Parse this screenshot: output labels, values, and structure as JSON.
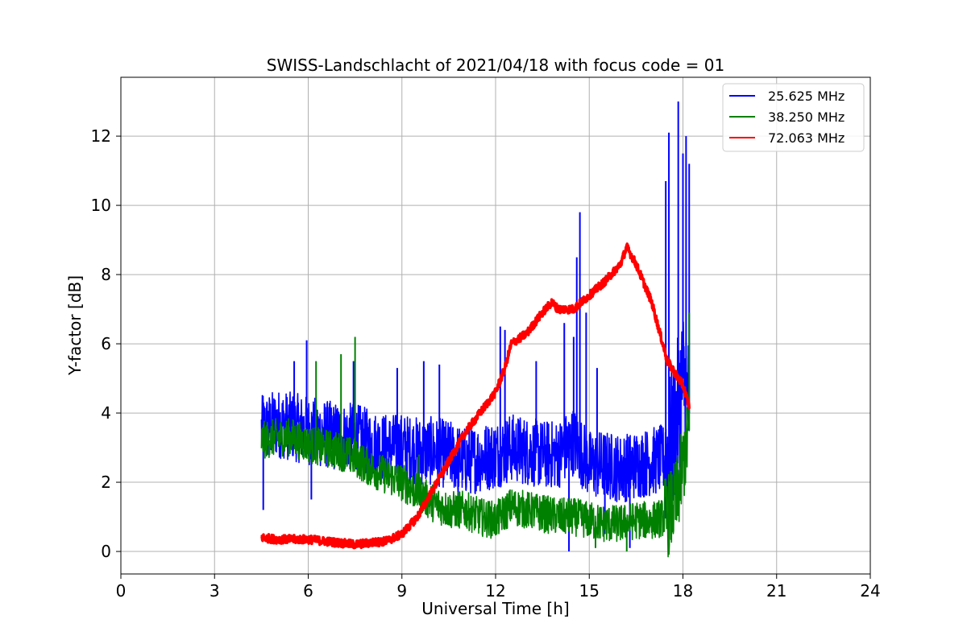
{
  "chart_data": {
    "type": "line",
    "title": "SWISS-Landschlacht of 2021/04/18 with focus code = 01",
    "xlabel": "Universal Time [h]",
    "ylabel": "Y-factor [dB]",
    "xlim": [
      0,
      24
    ],
    "ylim": [
      -0.65,
      13.7
    ],
    "xticks": [
      0,
      3,
      6,
      9,
      12,
      15,
      18,
      21,
      24
    ],
    "yticks": [
      0,
      2,
      4,
      6,
      8,
      10,
      12
    ],
    "grid": true,
    "legend_position": "top-right",
    "series": [
      {
        "name": "25.625 MHz",
        "color": "#0000ff",
        "x": [
          4.5,
          5.0,
          5.5,
          6.0,
          6.5,
          7.0,
          7.5,
          8.0,
          8.5,
          9.0,
          9.5,
          10.0,
          10.5,
          11.0,
          11.5,
          12.0,
          12.5,
          13.0,
          13.5,
          14.0,
          14.5,
          15.0,
          15.5,
          16.0,
          16.5,
          17.0,
          17.5,
          17.8,
          18.0,
          18.2
        ],
        "y": [
          3.5,
          3.7,
          3.6,
          3.5,
          3.4,
          3.3,
          3.3,
          3.1,
          3.0,
          3.0,
          2.9,
          2.9,
          2.8,
          2.6,
          2.7,
          2.8,
          3.0,
          2.9,
          2.8,
          2.8,
          3.2,
          2.5,
          2.5,
          2.4,
          2.5,
          2.6,
          2.7,
          3.8,
          5.0,
          4.0
        ],
        "spikes": [
          [
            4.55,
            4.5
          ],
          [
            4.56,
            1.2
          ],
          [
            5.55,
            5.5
          ],
          [
            5.95,
            6.1
          ],
          [
            6.1,
            1.5
          ],
          [
            7.45,
            5.5
          ],
          [
            8.85,
            5.3
          ],
          [
            9.7,
            5.5
          ],
          [
            10.2,
            5.4
          ],
          [
            10.8,
            1.0
          ],
          [
            12.15,
            6.5
          ],
          [
            12.3,
            6.4
          ],
          [
            13.3,
            5.5
          ],
          [
            14.2,
            6.6
          ],
          [
            14.35,
            0.0
          ],
          [
            14.5,
            6.2
          ],
          [
            14.7,
            9.8
          ],
          [
            14.6,
            8.5
          ],
          [
            14.9,
            6.9
          ],
          [
            15.25,
            5.3
          ],
          [
            15.5,
            0.5
          ],
          [
            16.3,
            0.1
          ],
          [
            17.45,
            10.7
          ],
          [
            17.55,
            12.1
          ],
          [
            17.85,
            13.0
          ],
          [
            18.0,
            11.5
          ],
          [
            18.1,
            12.0
          ],
          [
            18.2,
            11.2
          ]
        ]
      },
      {
        "name": "38.250 MHz",
        "color": "#008000",
        "x": [
          4.5,
          5.0,
          5.5,
          6.0,
          6.5,
          7.0,
          7.5,
          8.0,
          8.5,
          9.0,
          9.5,
          10.0,
          10.5,
          11.0,
          11.5,
          12.0,
          12.5,
          13.0,
          13.5,
          14.0,
          14.5,
          15.0,
          15.5,
          16.0,
          16.5,
          17.0,
          17.5,
          17.8,
          18.0,
          18.2
        ],
        "y": [
          3.2,
          3.3,
          3.3,
          3.1,
          3.0,
          2.9,
          2.7,
          2.4,
          2.2,
          2.0,
          1.7,
          1.4,
          1.2,
          1.2,
          1.0,
          0.9,
          1.3,
          1.2,
          1.1,
          1.0,
          1.0,
          0.9,
          0.8,
          0.8,
          0.9,
          0.9,
          1.0,
          1.5,
          2.5,
          3.5
        ],
        "spikes": [
          [
            6.25,
            5.5
          ],
          [
            7.05,
            5.7
          ],
          [
            7.5,
            6.2
          ],
          [
            9.55,
            2.8
          ],
          [
            15.2,
            0.1
          ],
          [
            16.2,
            0.0
          ],
          [
            18.2,
            6.9
          ]
        ]
      },
      {
        "name": "72.063 MHz",
        "color": "#ff0000",
        "x": [
          4.5,
          5.0,
          5.5,
          6.0,
          6.5,
          7.0,
          7.5,
          8.0,
          8.5,
          9.0,
          9.5,
          10.0,
          10.5,
          11.0,
          11.5,
          12.0,
          12.3,
          12.5,
          13.0,
          13.5,
          13.8,
          14.0,
          14.5,
          15.0,
          15.5,
          16.0,
          16.2,
          16.5,
          17.0,
          17.5,
          18.0,
          18.2
        ],
        "y": [
          0.4,
          0.35,
          0.35,
          0.35,
          0.3,
          0.25,
          0.2,
          0.25,
          0.3,
          0.5,
          1.0,
          1.8,
          2.6,
          3.4,
          4.0,
          4.6,
          5.3,
          6.0,
          6.3,
          6.9,
          7.2,
          7.0,
          7.0,
          7.4,
          7.8,
          8.3,
          8.8,
          8.3,
          7.2,
          5.5,
          4.8,
          4.2
        ]
      }
    ]
  }
}
